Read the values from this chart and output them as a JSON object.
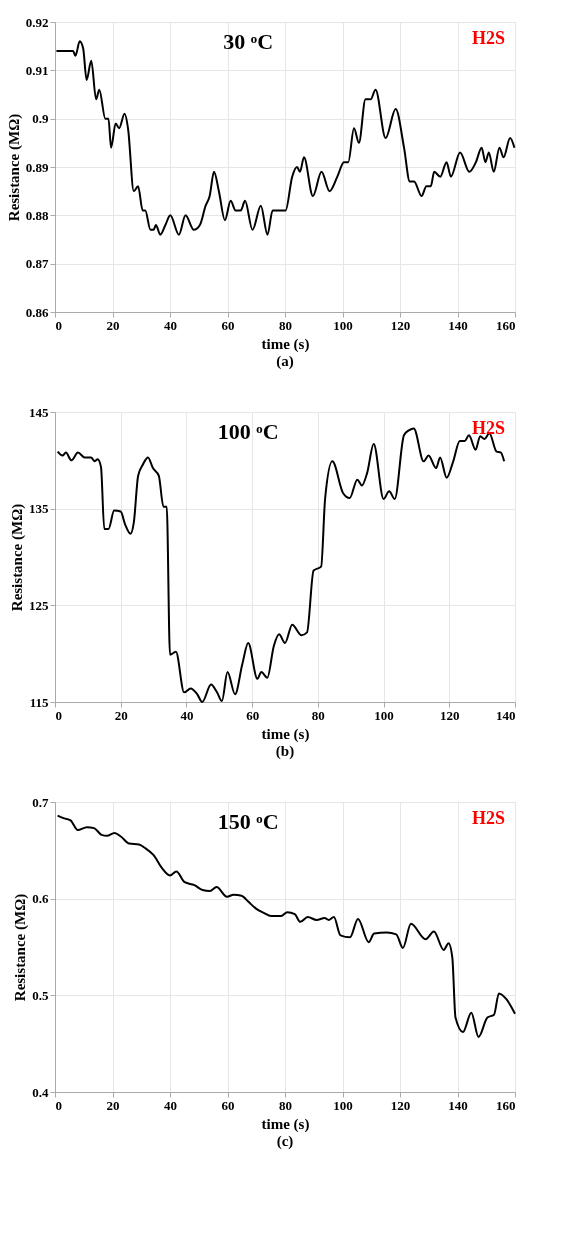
{
  "chart_data": [
    {
      "type": "line",
      "title": "30 ᵒC",
      "xlabel": "time (s)",
      "ylabel": "Resistance (MΩ)",
      "annotations": [
        "H2S",
        "(a)"
      ],
      "xlim": [
        0,
        160
      ],
      "xticks": [
        0,
        20,
        40,
        60,
        80,
        100,
        120,
        140,
        160
      ],
      "ylim": [
        0.86,
        0.92
      ],
      "yticks": [
        0.86,
        0.87,
        0.88,
        0.89,
        0.9,
        0.91,
        0.92
      ],
      "grid": true,
      "marker": "none",
      "line_style": "solid",
      "series": [
        {
          "color": "#000000",
          "x": [
            0.5,
            6.3,
            7.1,
            8.6,
            9.8,
            11,
            12.6,
            14.3,
            15.4,
            17.5,
            18.6,
            19.5,
            21.1,
            22.3,
            24.2,
            25.4,
            27.4,
            28.9,
            30.5,
            31.4,
            33.2,
            34.3,
            35.1,
            36.6,
            38.4,
            40.1,
            43.1,
            45.4,
            48.3,
            50.4,
            52.4,
            53.8,
            55.3,
            57,
            59.1,
            61.1,
            62.8,
            64.6,
            66.1,
            68.7,
            71.6,
            73.9,
            75.7,
            80.2,
            82.5,
            84.2,
            85.2,
            86.6,
            89.7,
            92.7,
            95.5,
            98.2,
            100.5,
            102,
            104,
            105.7,
            108,
            109.8,
            111.5,
            115,
            118.5,
            121.4,
            123.4,
            124.9,
            127.5,
            129.2,
            130.7,
            131.9,
            134,
            136.2,
            137.7,
            140.9,
            144.1,
            146.4,
            148.4,
            149.7,
            150.9,
            152.6,
            154.6,
            156,
            158.3,
            159.8
          ],
          "values": [
            0.914,
            0.914,
            0.913,
            0.916,
            0.9145,
            0.908,
            0.912,
            0.904,
            0.906,
            0.9,
            0.9,
            0.894,
            0.899,
            0.898,
            0.901,
            0.898,
            0.885,
            0.886,
            0.881,
            0.881,
            0.877,
            0.877,
            0.878,
            0.876,
            0.878,
            0.88,
            0.876,
            0.88,
            0.877,
            0.878,
            0.882,
            0.884,
            0.889,
            0.885,
            0.879,
            0.883,
            0.881,
            0.881,
            0.883,
            0.877,
            0.882,
            0.876,
            0.881,
            0.881,
            0.888,
            0.89,
            0.889,
            0.892,
            0.884,
            0.889,
            0.885,
            0.888,
            0.891,
            0.891,
            0.898,
            0.895,
            0.904,
            0.904,
            0.906,
            0.896,
            0.902,
            0.894,
            0.887,
            0.887,
            0.884,
            0.886,
            0.886,
            0.889,
            0.888,
            0.891,
            0.888,
            0.893,
            0.889,
            0.891,
            0.894,
            0.891,
            0.893,
            0.889,
            0.894,
            0.892,
            0.896,
            0.894
          ]
        }
      ]
    },
    {
      "type": "line",
      "title": "100 ᵒC",
      "xlabel": "time (s)",
      "ylabel": "Resistance (MΩ)",
      "annotations": [
        "H2S",
        "(b)"
      ],
      "xlim": [
        0,
        140
      ],
      "xticks": [
        0,
        20,
        40,
        60,
        80,
        100,
        120,
        140
      ],
      "ylim": [
        115,
        145
      ],
      "yticks": [
        115,
        125,
        135,
        145
      ],
      "grid": true,
      "marker": "none",
      "line_style": "solid",
      "series": [
        {
          "color": "#000000",
          "x": [
            0.8,
            2.3,
            3.3,
            5,
            7,
            9,
            11,
            12,
            13,
            14,
            15,
            16.3,
            18,
            20,
            21.3,
            23,
            24,
            25.3,
            26.8,
            28.3,
            29.8,
            31.6,
            33,
            34,
            35,
            36.8,
            39.3,
            41.3,
            43.3,
            44.8,
            47.5,
            49.3,
            50.8,
            52.5,
            54.8,
            57,
            58.8,
            61.6,
            62.8,
            64.6,
            66.6,
            68.2,
            70,
            72.2,
            75,
            76.7,
            78.7,
            81,
            82.2,
            84.4,
            87.7,
            89.7,
            92,
            93.4,
            95,
            97,
            100,
            101.7,
            103.4,
            106.2,
            107.7,
            109.2,
            112.2,
            113.7,
            116,
            117.2,
            119.2,
            121.2,
            123.2,
            124.7,
            126,
            128,
            129.4,
            130.7,
            132.2,
            134.4,
            135.7,
            136.7
          ],
          "values": [
            140.9,
            140.5,
            140.8,
            140,
            140.8,
            140.3,
            140.3,
            139.9,
            140.1,
            139.3,
            132.9,
            132.9,
            134.8,
            134.7,
            133.4,
            132.4,
            133.6,
            138.4,
            139.6,
            140.3,
            139.2,
            138.4,
            135.2,
            135.2,
            119.9,
            120.2,
            116,
            116.4,
            115.8,
            115,
            116.8,
            116,
            115.1,
            118.1,
            115.8,
            118.9,
            121.1,
            117.4,
            118.1,
            117.5,
            120.8,
            122,
            121.1,
            123,
            121.9,
            122.2,
            128.6,
            129,
            136,
            139.9,
            136.6,
            136.1,
            138,
            137.4,
            138.7,
            141.7,
            136,
            136.8,
            136,
            142.6,
            143.1,
            143.3,
            139.9,
            140.5,
            139.2,
            140.3,
            138.2,
            139.9,
            142,
            142,
            142.6,
            141.1,
            142.5,
            142.2,
            142.8,
            140.9,
            140.8,
            139.9
          ]
        }
      ]
    },
    {
      "type": "line",
      "title": "150 ᵒC",
      "xlabel": "time (s)",
      "ylabel": "Resistance (MΩ)",
      "annotations": [
        "H2S",
        "(c)"
      ],
      "xlim": [
        0,
        160
      ],
      "xticks": [
        0,
        20,
        40,
        60,
        80,
        100,
        120,
        140,
        160
      ],
      "ylim": [
        0.4,
        0.7
      ],
      "yticks": [
        0.4,
        0.5,
        0.6,
        0.7
      ],
      "grid": true,
      "marker": "none",
      "line_style": "solid",
      "series": [
        {
          "color": "#000000",
          "x": [
            0.9,
            3.2,
            5.4,
            7.9,
            11.1,
            13.6,
            16.2,
            18.1,
            20.7,
            23,
            25.8,
            29.2,
            31.5,
            34.3,
            37.1,
            40,
            42.2,
            45.1,
            48.5,
            51.3,
            53.9,
            56.2,
            59.8,
            62.1,
            64.9,
            67.2,
            69.8,
            72.8,
            75.1,
            78.5,
            80.8,
            83.4,
            85.3,
            87.9,
            91,
            93.8,
            95.2,
            97,
            99.3,
            102.6,
            105.4,
            109.1,
            111,
            115.3,
            118.7,
            121,
            123.8,
            128.9,
            131.8,
            135.2,
            136.9,
            138.2,
            139.3,
            141.9,
            144.8,
            147.3,
            150.4,
            152.7,
            154.4,
            157,
            160
          ],
          "values": [
            0.686,
            0.683,
            0.681,
            0.671,
            0.674,
            0.673,
            0.666,
            0.665,
            0.668,
            0.664,
            0.657,
            0.656,
            0.652,
            0.645,
            0.632,
            0.624,
            0.628,
            0.617,
            0.614,
            0.609,
            0.608,
            0.612,
            0.602,
            0.604,
            0.603,
            0.597,
            0.59,
            0.585,
            0.582,
            0.582,
            0.586,
            0.584,
            0.576,
            0.581,
            0.578,
            0.58,
            0.578,
            0.581,
            0.562,
            0.56,
            0.579,
            0.555,
            0.564,
            0.565,
            0.563,
            0.549,
            0.574,
            0.558,
            0.566,
            0.547,
            0.554,
            0.539,
            0.477,
            0.462,
            0.482,
            0.457,
            0.477,
            0.48,
            0.502,
            0.496,
            0.481
          ]
        }
      ]
    }
  ]
}
